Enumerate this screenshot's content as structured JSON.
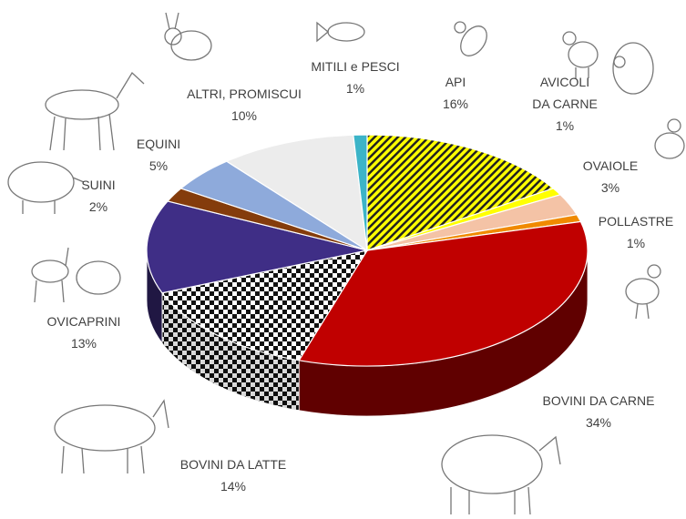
{
  "chart_data": {
    "type": "pie3d",
    "categories": [
      "API",
      "AVICOLI DA CARNE",
      "OVAIOLE",
      "POLLASTRE",
      "BOVINI DA CARNE",
      "BOVINI DA LATTE",
      "OVICAPRINI",
      "SUINI",
      "EQUINI",
      "ALTRI, PROMISCUI",
      "MITILI e PESCI"
    ],
    "values": [
      16,
      1,
      3,
      1,
      34,
      14,
      13,
      2,
      5,
      10,
      1
    ],
    "value_labels": [
      "16%",
      "1%",
      "3%",
      "1%",
      "34%",
      "14%",
      "13%",
      "2%",
      "5%",
      "10%",
      "1%"
    ],
    "colors": [
      "#ffff00",
      "#ffff00",
      "#f4c3a6",
      "#f08a00",
      "#c00000",
      "#ffffff",
      "#3f2e86",
      "#843c0c",
      "#8eaadb",
      "#ececec",
      "#3cb4c8"
    ],
    "patterns": [
      "stripes",
      null,
      null,
      null,
      null,
      "checker",
      null,
      null,
      null,
      null,
      null
    ]
  }
}
